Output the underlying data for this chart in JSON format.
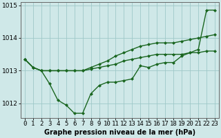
{
  "xlabel": "Graphe pression niveau de la mer (hPa)",
  "x": [
    0,
    1,
    2,
    3,
    4,
    5,
    6,
    7,
    8,
    9,
    10,
    11,
    12,
    13,
    14,
    15,
    16,
    17,
    18,
    19,
    20,
    21,
    22,
    23
  ],
  "line1": [
    1013.35,
    1013.1,
    1013.0,
    1013.0,
    1013.0,
    1013.0,
    1013.0,
    1013.0,
    1013.05,
    1013.1,
    1013.15,
    1013.2,
    1013.3,
    1013.35,
    1013.4,
    1013.45,
    1013.5,
    1013.5,
    1013.5,
    1013.5,
    1013.55,
    1013.55,
    1013.6,
    1013.6
  ],
  "line2": [
    1013.35,
    1013.1,
    1013.0,
    1012.6,
    1012.1,
    1011.95,
    1011.7,
    1011.7,
    1012.3,
    1012.55,
    1012.65,
    1012.65,
    1012.7,
    1012.75,
    1013.15,
    1013.1,
    1013.2,
    1013.25,
    1013.25,
    1013.45,
    1013.55,
    1013.65,
    1014.85,
    1014.85
  ],
  "line3": [
    1013.35,
    1013.1,
    1013.0,
    1013.0,
    1013.0,
    1013.0,
    1013.0,
    1013.0,
    1013.1,
    1013.2,
    1013.3,
    1013.45,
    1013.55,
    1013.65,
    1013.75,
    1013.8,
    1013.85,
    1013.85,
    1013.85,
    1013.9,
    1013.95,
    1014.0,
    1014.05,
    1014.1
  ],
  "ylim_min": 1011.55,
  "ylim_max": 1015.1,
  "yticks": [
    1012,
    1013,
    1014,
    1015
  ],
  "bg_color": "#cfe8e8",
  "grid_color": "#9ec8c8",
  "line_color": "#1a6620",
  "marker": "D",
  "marker_size": 2.0,
  "line_width": 1.0,
  "xlabel_fontsize": 7,
  "tick_fontsize": 6.5
}
